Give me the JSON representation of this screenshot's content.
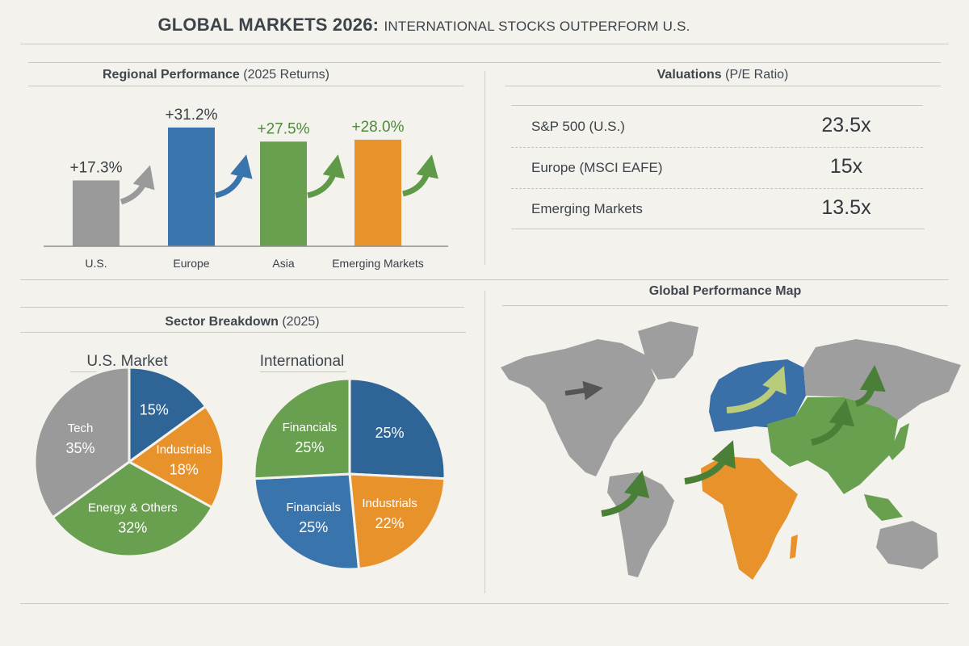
{
  "header": {
    "title_main": "GLOBAL MARKETS 2026:",
    "title_sub": "INTERNATIONAL STOCKS OUTPERFORM U.S."
  },
  "regional": {
    "title": "Regional Performance",
    "title_paren": "(2025 Returns)"
  },
  "valuations": {
    "title": "Valuations",
    "title_paren": "(P/E Ratio)",
    "rows": [
      {
        "label": "S&P 500 (U.S.)",
        "value": "23.5x"
      },
      {
        "label": "Europe (MSCI EAFE)",
        "value": "15x"
      },
      {
        "label": "Emerging Markets",
        "value": "13.5x"
      }
    ]
  },
  "sector": {
    "title": "Sector Breakdown",
    "title_paren": "(2025)"
  },
  "map": {
    "title": "Global Performance Map",
    "region_colors": {
      "north_america": "#9e9e9e",
      "europe": "#3a6fa8",
      "africa": "#e8922c",
      "asia": "#68a050",
      "south_america": "#9e9e9e",
      "australia": "#9e9e9e"
    },
    "icons": [
      "arrow-right-icon",
      "arrow-up-curved-icon"
    ]
  },
  "colors": {
    "gray": "#9a9a9a",
    "blue": "#3a74ad",
    "green": "#68a050",
    "orange": "#e8922c",
    "text": "#3a3f45",
    "green_text": "#4e8a3a"
  },
  "chart_data": [
    {
      "type": "bar",
      "title": "Regional Performance (2025 Returns)",
      "categories": [
        "U.S.",
        "Europe",
        "Asia",
        "Emerging Markets"
      ],
      "values": [
        17.3,
        31.2,
        27.5,
        28.0
      ],
      "labels": [
        "+17.3%",
        "+31.2%",
        "+27.5%",
        "+28.0%"
      ],
      "colors": [
        "#9a9a9a",
        "#3a74ad",
        "#68a050",
        "#e8922c"
      ],
      "label_colors": [
        "#3a3f45",
        "#3a3f45",
        "#4e8a3a",
        "#4e8a3a"
      ],
      "ylim": [
        0,
        35
      ],
      "grid": false
    },
    {
      "type": "pie",
      "title": "U.S. Market",
      "slices": [
        {
          "label": "",
          "value": 15,
          "text": "15%",
          "color": "#2f6497"
        },
        {
          "label": "Industrials",
          "value": 18,
          "text": "18%",
          "color": "#e8922c"
        },
        {
          "label": "Energy & Others",
          "value": 32,
          "text": "32%",
          "color": "#68a050"
        },
        {
          "label": "Tech",
          "value": 35,
          "text": "35%",
          "color": "#9a9a9a"
        }
      ]
    },
    {
      "type": "pie",
      "title": "International",
      "slices": [
        {
          "label": "",
          "value": 25,
          "text": "25%",
          "color": "#2f6497"
        },
        {
          "label": "Industrials",
          "value": 22,
          "text": "22%",
          "color": "#e8922c"
        },
        {
          "label": "Financials",
          "value": 25,
          "text": "25%",
          "color": "#3a74ad"
        },
        {
          "label": "Financials",
          "value": 25,
          "text": "25%",
          "color": "#68a050"
        }
      ]
    }
  ]
}
